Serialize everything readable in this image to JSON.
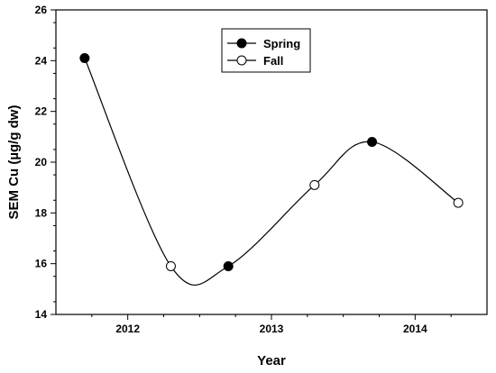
{
  "chart_data": {
    "type": "line",
    "xlabel": "Year",
    "ylabel": "SEM Cu (µg/g dw)",
    "xlim": [
      2011.5,
      2014.5
    ],
    "ylim": [
      14,
      26
    ],
    "xticks": [
      2012,
      2013,
      2014
    ],
    "yticks": [
      14,
      16,
      18,
      20,
      22,
      24,
      26
    ],
    "ytick_minor_step": 0.5,
    "xtick_minor_step": 0.25,
    "grid": false,
    "legend_position": "top-center",
    "curve": "smooth",
    "points": [
      {
        "x": 2011.7,
        "y": 24.1,
        "series": "Spring"
      },
      {
        "x": 2012.3,
        "y": 15.9,
        "series": "Fall"
      },
      {
        "x": 2012.7,
        "y": 15.9,
        "series": "Spring"
      },
      {
        "x": 2013.3,
        "y": 19.1,
        "series": "Fall"
      },
      {
        "x": 2013.7,
        "y": 20.8,
        "series": "Spring"
      },
      {
        "x": 2014.3,
        "y": 18.4,
        "series": "Fall"
      }
    ],
    "series": [
      {
        "name": "Spring",
        "marker": "filled-circle",
        "color": "#000000"
      },
      {
        "name": "Fall",
        "marker": "open-circle",
        "color": "#000000"
      }
    ]
  }
}
